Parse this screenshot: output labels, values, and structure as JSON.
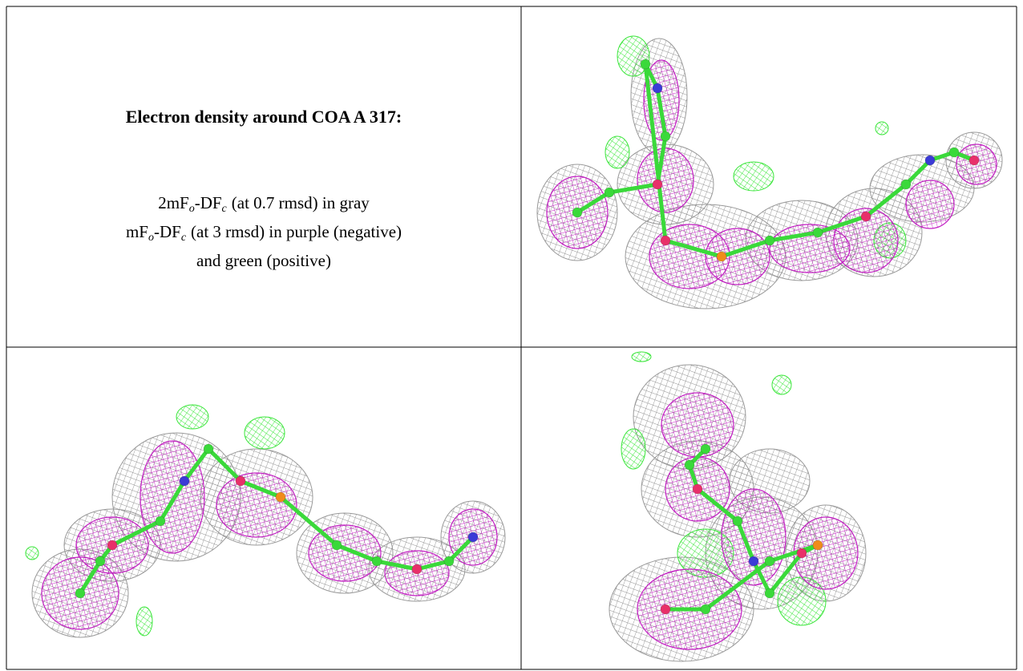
{
  "caption": {
    "title": "Electron density around COA A 317:",
    "lines": [
      [
        {
          "main": "2mF",
          "sub": "o"
        },
        {
          "main": "-DF",
          "sub": "c"
        },
        {
          "main": "(at 0.7 rmsd) in gray"
        }
      ],
      [
        {
          "main": "mF",
          "sub": "o"
        },
        {
          "main": "-DF",
          "sub": "c"
        },
        {
          "main": "(at 3 rmsd) in purple (negative)"
        }
      ],
      [
        {
          "main": "and green (positive)"
        }
      ]
    ]
  }
}
